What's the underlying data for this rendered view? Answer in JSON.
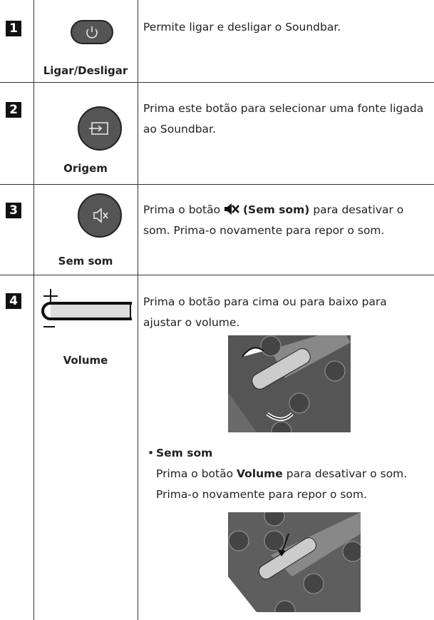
{
  "rows": [
    {
      "number": "1",
      "label": "Ligar/Desligar",
      "description": "Permite ligar e desligar o Soundbar."
    },
    {
      "number": "2",
      "label": "Origem",
      "description": "Prima este botão para selecionar uma fonte ligada ao Soundbar."
    },
    {
      "number": "3",
      "label": "Sem som",
      "description": {
        "before": "Prima o botão",
        "bold": "(Sem som)",
        "after": "para desativar o som. Prima-o novamente para repor o som."
      }
    },
    {
      "number": "4",
      "label": "Volume",
      "description": "Prima o botão para cima ou para baixo para ajustar o volume.",
      "bullet": {
        "title": "Sem som",
        "before": "Prima o botão",
        "bold": "Volume",
        "after": "para desativar o som. Prima-o novamente para repor o som."
      }
    }
  ]
}
